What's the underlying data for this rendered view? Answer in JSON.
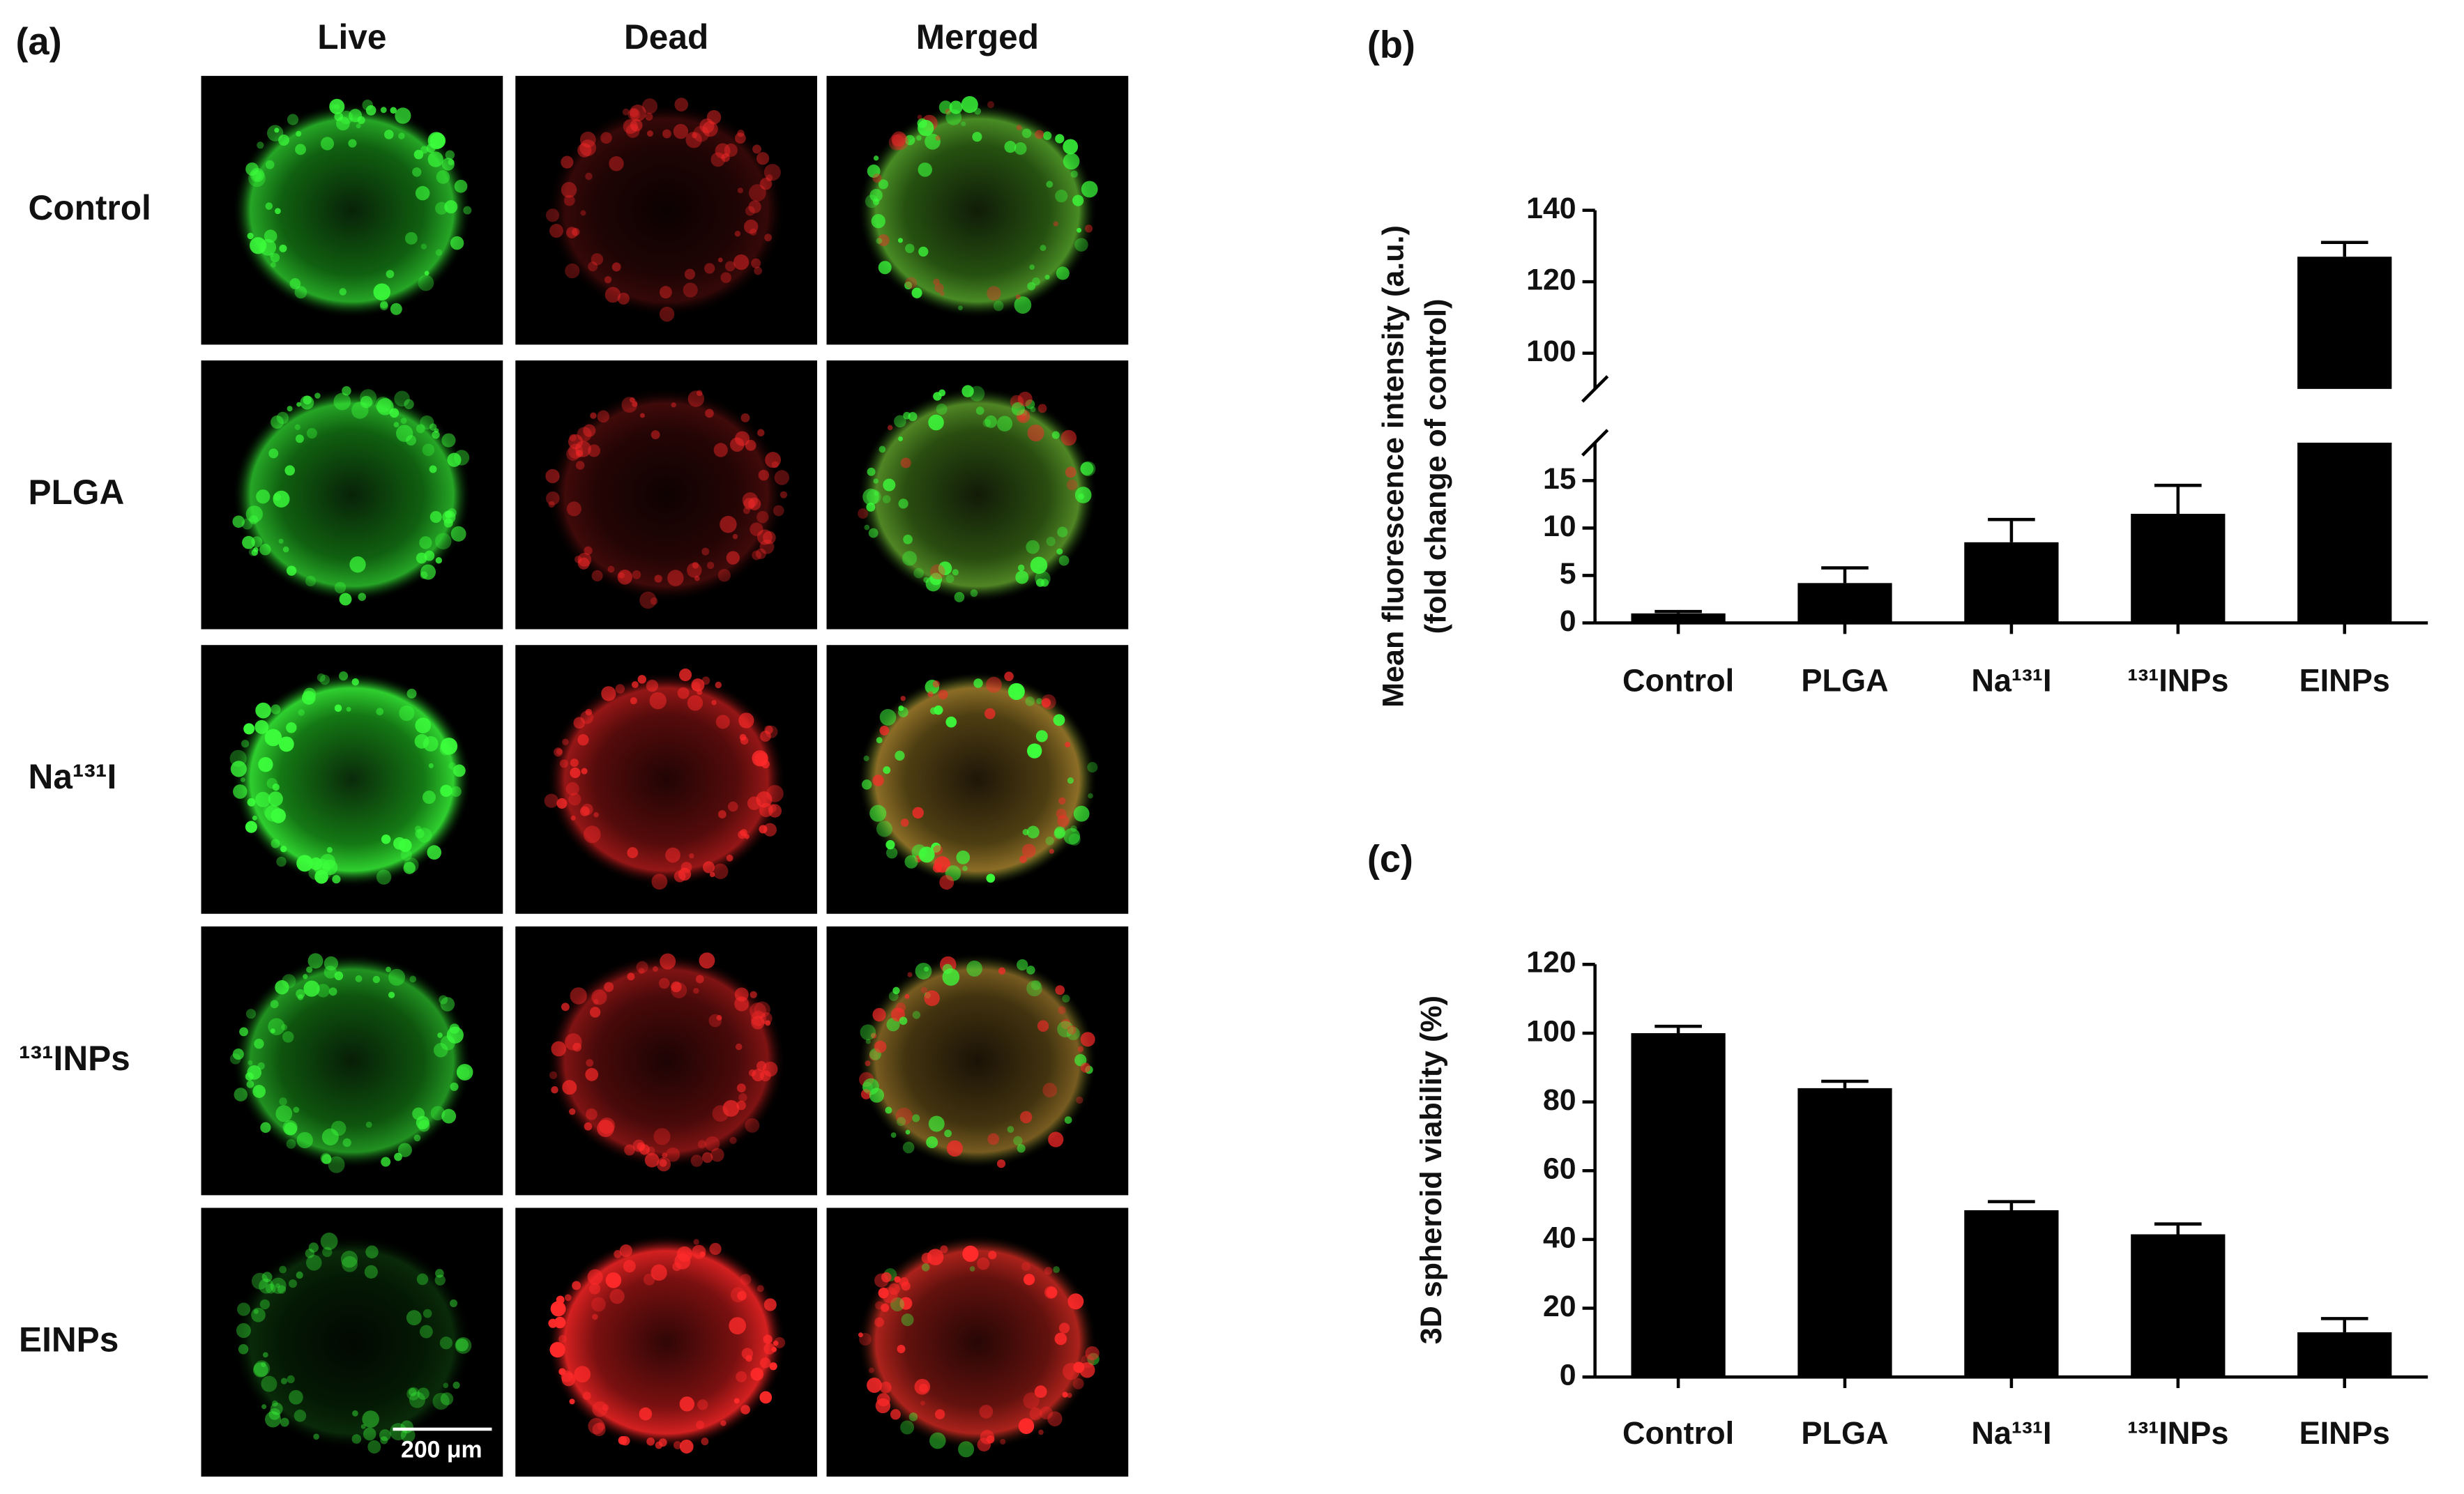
{
  "panel_a": {
    "label": "(a)",
    "columns": [
      "Live",
      "Dead",
      "Merged"
    ],
    "rows": [
      "Control",
      "PLGA",
      "Na¹³¹I",
      "¹³¹INPs",
      "EINPs"
    ],
    "scale_bar": "200 μm"
  },
  "chart_data": [
    {
      "type": "bar",
      "label": "(b)",
      "ylabel": [
        "Mean fluorescence intensity (a.u.)",
        "(fold change of control)"
      ],
      "categories": [
        "Control",
        "PLGA",
        "Na¹³¹I",
        "¹³¹INPs",
        "EINPs"
      ],
      "values": [
        1,
        4.2,
        8.5,
        11.5,
        127
      ],
      "errors": [
        0.2,
        1.6,
        2.4,
        3,
        4
      ],
      "color": "#000000",
      "ylim": [
        0,
        140
      ],
      "ybreak": [
        19,
        90
      ],
      "yticks": [
        0,
        5,
        10,
        15,
        100,
        120,
        140
      ]
    },
    {
      "type": "bar",
      "label": "(c)",
      "ylabel": [
        "3D spheroid viability (%)"
      ],
      "categories": [
        "Control",
        "PLGA",
        "Na¹³¹I",
        "¹³¹INPs",
        "EINPs"
      ],
      "values": [
        100,
        84,
        48.5,
        41.5,
        13
      ],
      "errors": [
        2,
        2,
        2.5,
        3,
        4
      ],
      "color": "#000000",
      "ylim": [
        0,
        120
      ],
      "yticks": [
        0,
        20,
        40,
        60,
        80,
        100,
        120
      ]
    }
  ]
}
